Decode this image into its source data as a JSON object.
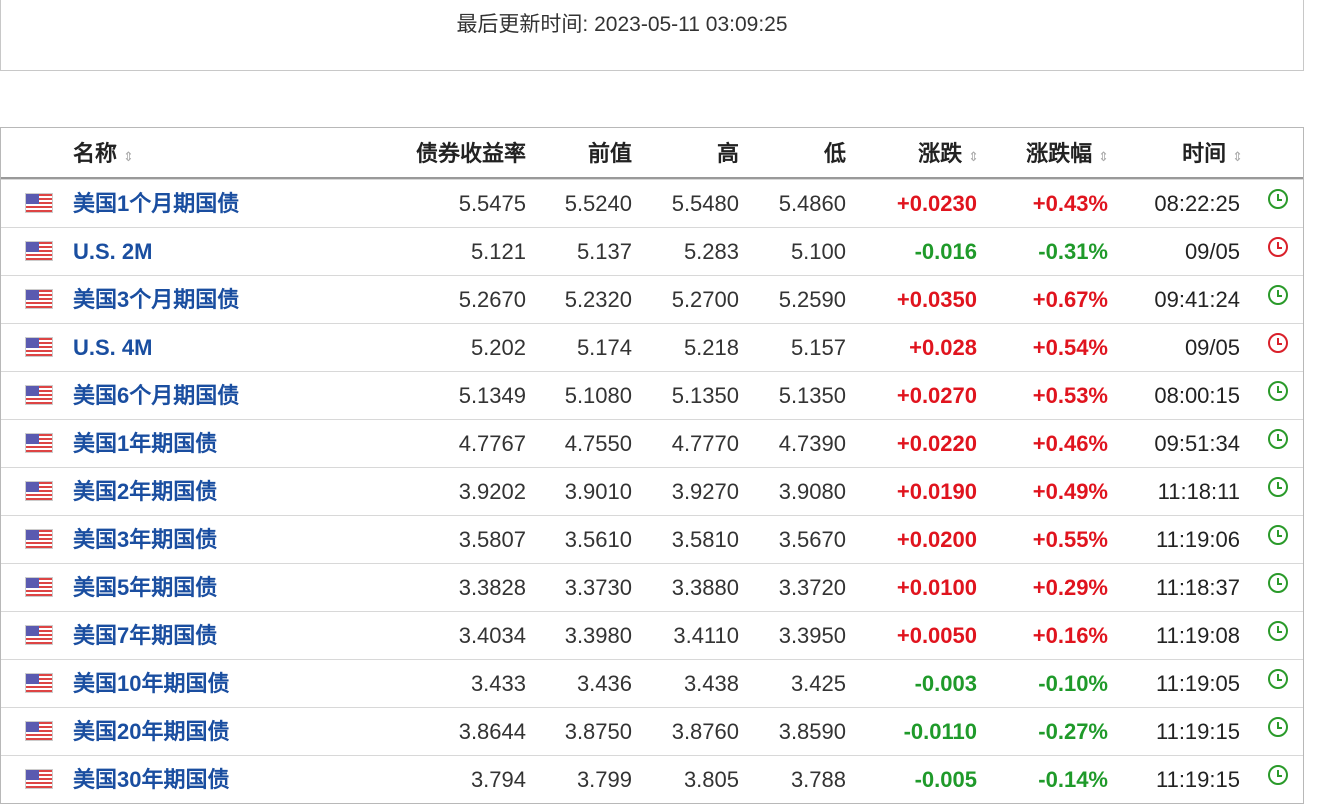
{
  "header": {
    "last_updated": "最后更新时间: 2023-05-11 03:09:25"
  },
  "colors": {
    "up": "#e0141e",
    "down": "#1f9a2a",
    "name_link": "#1a4ea0"
  },
  "table": {
    "columns": {
      "name": "名称",
      "yield": "债券收益率",
      "prev": "前值",
      "high": "高",
      "low": "低",
      "change": "涨跌",
      "pct": "涨跌幅",
      "time": "时间"
    },
    "sort_icon": "⇕",
    "rows": [
      {
        "name": "美国1个月期国债",
        "yield": "5.5475",
        "prev": "5.5240",
        "high": "5.5480",
        "low": "5.4860",
        "change": "+0.0230",
        "pct": "+0.43%",
        "time": "08:22:25",
        "dir": "up",
        "clock": "green"
      },
      {
        "name": "U.S. 2M",
        "yield": "5.121",
        "prev": "5.137",
        "high": "5.283",
        "low": "5.100",
        "change": "-0.016",
        "pct": "-0.31%",
        "time": "09/05",
        "dir": "down",
        "clock": "red"
      },
      {
        "name": "美国3个月期国债",
        "yield": "5.2670",
        "prev": "5.2320",
        "high": "5.2700",
        "low": "5.2590",
        "change": "+0.0350",
        "pct": "+0.67%",
        "time": "09:41:24",
        "dir": "up",
        "clock": "green"
      },
      {
        "name": "U.S. 4M",
        "yield": "5.202",
        "prev": "5.174",
        "high": "5.218",
        "low": "5.157",
        "change": "+0.028",
        "pct": "+0.54%",
        "time": "09/05",
        "dir": "up",
        "clock": "red"
      },
      {
        "name": "美国6个月期国债",
        "yield": "5.1349",
        "prev": "5.1080",
        "high": "5.1350",
        "low": "5.1350",
        "change": "+0.0270",
        "pct": "+0.53%",
        "time": "08:00:15",
        "dir": "up",
        "clock": "green"
      },
      {
        "name": "美国1年期国债",
        "yield": "4.7767",
        "prev": "4.7550",
        "high": "4.7770",
        "low": "4.7390",
        "change": "+0.0220",
        "pct": "+0.46%",
        "time": "09:51:34",
        "dir": "up",
        "clock": "green"
      },
      {
        "name": "美国2年期国债",
        "yield": "3.9202",
        "prev": "3.9010",
        "high": "3.9270",
        "low": "3.9080",
        "change": "+0.0190",
        "pct": "+0.49%",
        "time": "11:18:11",
        "dir": "up",
        "clock": "green"
      },
      {
        "name": "美国3年期国债",
        "yield": "3.5807",
        "prev": "3.5610",
        "high": "3.5810",
        "low": "3.5670",
        "change": "+0.0200",
        "pct": "+0.55%",
        "time": "11:19:06",
        "dir": "up",
        "clock": "green"
      },
      {
        "name": "美国5年期国债",
        "yield": "3.3828",
        "prev": "3.3730",
        "high": "3.3880",
        "low": "3.3720",
        "change": "+0.0100",
        "pct": "+0.29%",
        "time": "11:18:37",
        "dir": "up",
        "clock": "green"
      },
      {
        "name": "美国7年期国债",
        "yield": "3.4034",
        "prev": "3.3980",
        "high": "3.4110",
        "low": "3.3950",
        "change": "+0.0050",
        "pct": "+0.16%",
        "time": "11:19:08",
        "dir": "up",
        "clock": "green"
      },
      {
        "name": "美国10年期国债",
        "yield": "3.433",
        "prev": "3.436",
        "high": "3.438",
        "low": "3.425",
        "change": "-0.003",
        "pct": "-0.10%",
        "time": "11:19:05",
        "dir": "down",
        "clock": "green"
      },
      {
        "name": "美国20年期国债",
        "yield": "3.8644",
        "prev": "3.8750",
        "high": "3.8760",
        "low": "3.8590",
        "change": "-0.0110",
        "pct": "-0.27%",
        "time": "11:19:15",
        "dir": "down",
        "clock": "green"
      },
      {
        "name": "美国30年期国债",
        "yield": "3.794",
        "prev": "3.799",
        "high": "3.805",
        "low": "3.788",
        "change": "-0.005",
        "pct": "-0.14%",
        "time": "11:19:15",
        "dir": "down",
        "clock": "green"
      }
    ]
  }
}
